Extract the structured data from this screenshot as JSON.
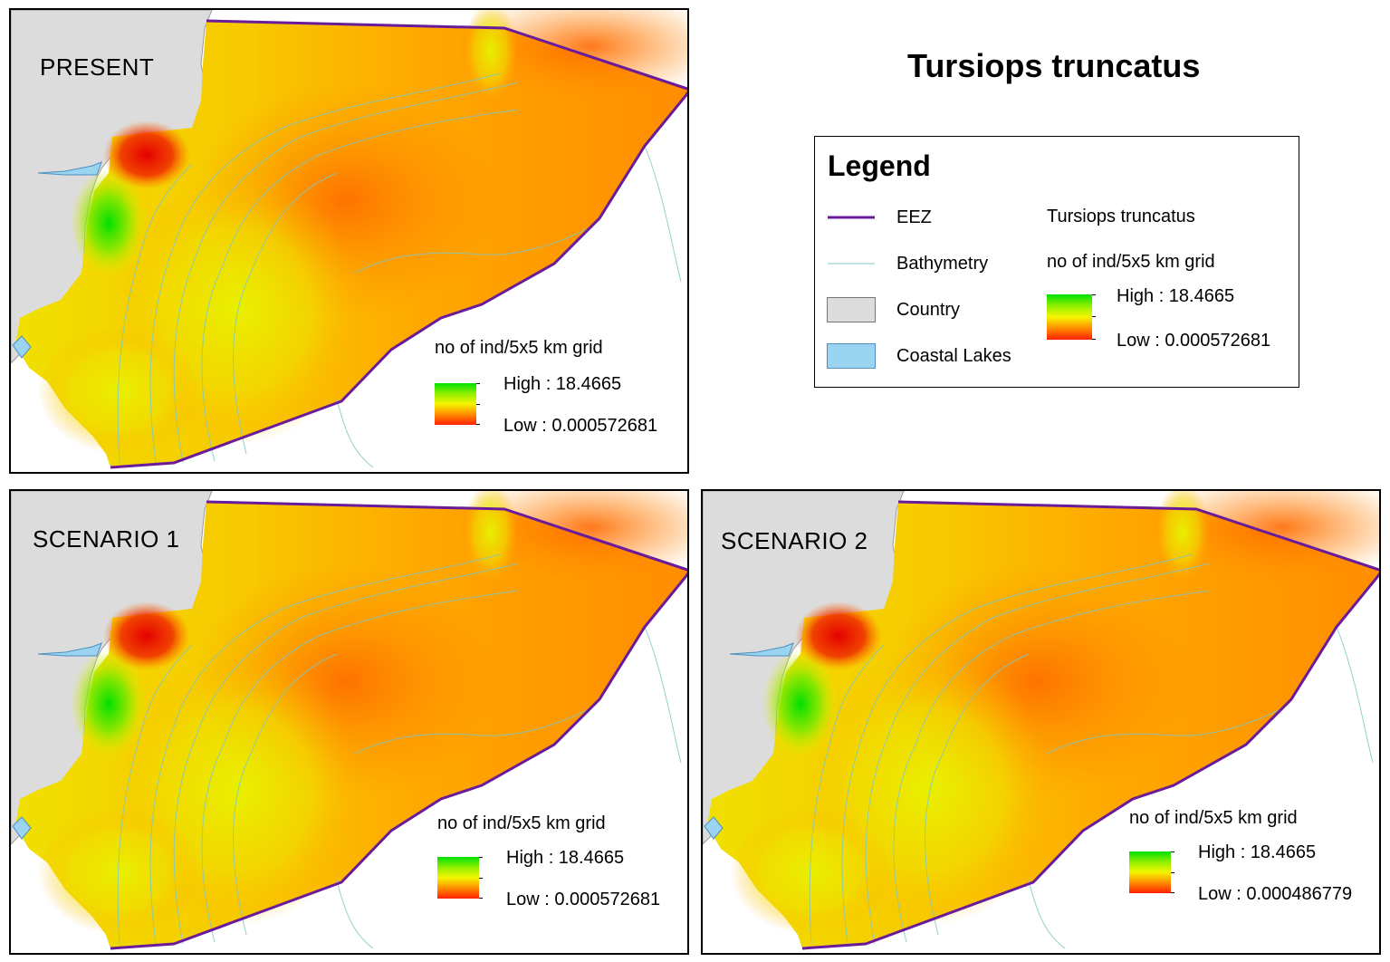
{
  "title": "Tursiops truncatus",
  "colors": {
    "eez": "#6a1b9a",
    "bathymetry": "#7ec8c8",
    "country": "#dcdcdc",
    "coastal_lakes": "#9bd4f0",
    "density_high": "#00e000",
    "density_low": "#ff2000"
  },
  "legend": {
    "title": "Legend",
    "items": [
      {
        "label": "EEZ",
        "symbol": "line"
      },
      {
        "label": "Bathymetry",
        "symbol": "thin-line"
      },
      {
        "label": "Country",
        "symbol": "grey-patch"
      },
      {
        "label": "Coastal Lakes",
        "symbol": "blue-patch"
      }
    ],
    "layer_name": "Tursiops truncatus",
    "field": "no of ind/5x5 km grid",
    "high": "High : 18.4665",
    "low": "Low : 0.000572681"
  },
  "panels": [
    {
      "label": "PRESENT",
      "legend_title": "no of ind/5x5 km grid",
      "high": "High : 18.4665",
      "low": "Low : 0.000572681"
    },
    {
      "label": "SCENARIO 1",
      "legend_title": "no of ind/5x5 km grid",
      "high": "High : 18.4665",
      "low": "Low : 0.000572681"
    },
    {
      "label": "SCENARIO 2",
      "legend_title": "no of ind/5x5 km grid",
      "high": "High : 18.4665",
      "low": "Low : 0.000486779"
    }
  ]
}
